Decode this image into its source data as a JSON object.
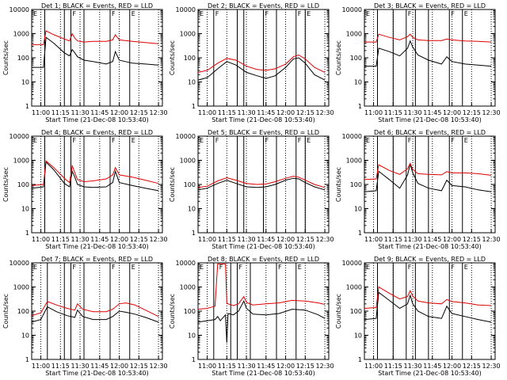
{
  "chart_data": [
    {
      "type": "line",
      "title": "Det 1; BLACK = Events, RED = LLD",
      "xlabel": "Start Time (21-Dec-08 10:53:40)",
      "ylabel": "Counts/sec",
      "yscale": "log",
      "ylim": [
        1,
        10000
      ],
      "xlim": [
        "10:53",
        "12:33"
      ],
      "x_ticks": [
        "11:00",
        "11:15",
        "11:30",
        "11:45",
        "12:00",
        "12:15",
        "12:30"
      ],
      "y_ticks": [
        "1",
        "10",
        "100",
        "1000",
        "10000"
      ],
      "segment_lines": [
        "11:03",
        "11:18",
        "11:23",
        "11:33",
        "11:53",
        "12:08"
      ],
      "markers": [
        {
          "time": "10:53",
          "label": "E"
        },
        {
          "time": "11:23",
          "label": "F"
        },
        {
          "time": "11:53",
          "label": "F"
        },
        {
          "time": "12:08",
          "label": "E"
        }
      ],
      "x": [
        "10:53",
        "11:02",
        "11:04",
        "11:10",
        "11:18",
        "11:22",
        "11:24",
        "11:26",
        "11:28",
        "11:33",
        "11:40",
        "11:50",
        "11:55",
        "11:57",
        "12:00",
        "12:10",
        "12:20",
        "12:30"
      ],
      "series": [
        {
          "name": "BLACK = Events",
          "color": "#000000",
          "values": [
            40,
            40,
            700,
            400,
            160,
            120,
            220,
            160,
            110,
            80,
            70,
            55,
            70,
            180,
            80,
            60,
            55,
            50
          ]
        },
        {
          "name": "RED = LLD",
          "color": "#e00000",
          "values": [
            350,
            350,
            1300,
            900,
            600,
            500,
            1000,
            650,
            500,
            450,
            480,
            480,
            550,
            900,
            550,
            480,
            430,
            380
          ]
        }
      ]
    },
    {
      "type": "line",
      "title": "Det 2; BLACK = Events, RED = LLD",
      "xlabel": "Start Time (21-Dec-08 10:53:40)",
      "ylabel": "Counts/sec",
      "yscale": "log",
      "ylim": [
        1,
        10000
      ],
      "xlim": [
        "10:53",
        "12:33"
      ],
      "x_ticks": [
        "11:00",
        "11:15",
        "11:30",
        "11:45",
        "12:00",
        "12:15",
        "12:30"
      ],
      "y_ticks": [
        "1",
        "10",
        "100",
        "1000",
        "10000"
      ],
      "segment_lines": [
        "11:05",
        "11:23",
        "11:28",
        "11:43",
        "11:53",
        "12:08",
        "12:15"
      ],
      "markers": [
        {
          "time": "10:53",
          "label": "E"
        },
        {
          "time": "11:05",
          "label": "F"
        },
        {
          "time": "11:43",
          "label": "F"
        },
        {
          "time": "12:08",
          "label": "F"
        },
        {
          "time": "12:15",
          "label": "E"
        }
      ],
      "x": [
        "10:53",
        "11:00",
        "11:08",
        "11:15",
        "11:22",
        "11:30",
        "11:38",
        "11:45",
        "11:52",
        "12:00",
        "12:06",
        "12:10",
        "12:15",
        "12:22",
        "12:30"
      ],
      "series": [
        {
          "name": "BLACK = Events",
          "color": "#000000",
          "values": [
            12,
            15,
            35,
            70,
            50,
            25,
            18,
            14,
            18,
            40,
            90,
            100,
            60,
            20,
            12
          ]
        },
        {
          "name": "RED = LLD",
          "color": "#e00000",
          "values": [
            25,
            30,
            60,
            95,
            80,
            45,
            33,
            30,
            35,
            55,
            110,
            130,
            90,
            40,
            25
          ]
        }
      ]
    },
    {
      "type": "line",
      "title": "Det 3; BLACK = Events, RED = LLD",
      "xlabel": "Start Time (21-Dec-08 10:53:40)",
      "ylabel": "Counts/sec",
      "yscale": "log",
      "ylim": [
        1,
        10000
      ],
      "xlim": [
        "10:53",
        "12:33"
      ],
      "x_ticks": [
        "11:00",
        "11:15",
        "11:30",
        "11:45",
        "12:00",
        "12:15",
        "12:30"
      ],
      "y_ticks": [
        "1",
        "10",
        "100",
        "1000",
        "10000"
      ],
      "segment_lines": [
        "11:03",
        "11:15",
        "11:25",
        "11:32",
        "11:42",
        "11:58",
        "12:08"
      ],
      "markers": [
        {
          "time": "10:53",
          "label": "E"
        },
        {
          "time": "11:25",
          "label": "F"
        },
        {
          "time": "11:58",
          "label": "F"
        },
        {
          "time": "12:08",
          "label": "E"
        }
      ],
      "x": [
        "10:53",
        "11:02",
        "11:04",
        "11:12",
        "11:20",
        "11:26",
        "11:28",
        "11:30",
        "11:34",
        "11:42",
        "11:52",
        "11:56",
        "12:00",
        "12:10",
        "12:20",
        "12:30"
      ],
      "series": [
        {
          "name": "BLACK = Events",
          "color": "#000000",
          "values": [
            45,
            45,
            250,
            180,
            120,
            250,
            500,
            280,
            130,
            80,
            55,
            110,
            70,
            55,
            50,
            45
          ]
        },
        {
          "name": "RED = LLD",
          "color": "#e00000",
          "values": [
            450,
            450,
            950,
            700,
            550,
            750,
            950,
            700,
            550,
            520,
            520,
            600,
            550,
            500,
            480,
            450
          ]
        }
      ]
    },
    {
      "type": "line",
      "title": "Det 4; BLACK = Events, RED = LLD",
      "xlabel": "Start Time (21-Dec-08 10:53:40)",
      "ylabel": "Counts/sec",
      "yscale": "log",
      "ylim": [
        1,
        10000
      ],
      "xlim": [
        "10:53",
        "12:33"
      ],
      "x_ticks": [
        "11:00",
        "11:15",
        "11:30",
        "11:45",
        "12:00",
        "12:15",
        "12:30"
      ],
      "y_ticks": [
        "1",
        "10",
        "100",
        "1000",
        "10000"
      ],
      "segment_lines": [
        "11:03",
        "11:18",
        "11:23",
        "11:33",
        "11:53",
        "12:08"
      ],
      "markers": [
        {
          "time": "10:53",
          "label": "E"
        },
        {
          "time": "11:23",
          "label": "F"
        },
        {
          "time": "11:53",
          "label": "F"
        },
        {
          "time": "12:08",
          "label": "E"
        }
      ],
      "x": [
        "10:53",
        "11:02",
        "11:04",
        "11:10",
        "11:18",
        "11:22",
        "11:24",
        "11:26",
        "11:28",
        "11:33",
        "11:40",
        "11:50",
        "11:55",
        "11:57",
        "12:00",
        "12:10",
        "12:20",
        "12:30"
      ],
      "series": [
        {
          "name": "BLACK = Events",
          "color": "#000000",
          "values": [
            70,
            80,
            850,
            400,
            110,
            80,
            350,
            200,
            100,
            80,
            75,
            80,
            120,
            350,
            120,
            90,
            70,
            55
          ]
        },
        {
          "name": "RED = LLD",
          "color": "#e00000",
          "values": [
            90,
            100,
            950,
            500,
            180,
            120,
            600,
            300,
            160,
            130,
            140,
            170,
            250,
            500,
            250,
            200,
            150,
            110
          ]
        }
      ]
    },
    {
      "type": "line",
      "title": "Det 5; BLACK = Events, RED = LLD",
      "xlabel": "Start Time (21-Dec-08 10:53:40)",
      "ylabel": "Counts/sec",
      "yscale": "log",
      "ylim": [
        1,
        10000
      ],
      "xlim": [
        "10:53",
        "12:33"
      ],
      "x_ticks": [
        "11:00",
        "11:15",
        "11:30",
        "11:45",
        "12:00",
        "12:15",
        "12:30"
      ],
      "y_ticks": [
        "1",
        "10",
        "100",
        "1000",
        "10000"
      ],
      "segment_lines": [
        "11:05",
        "11:23",
        "11:28",
        "11:43",
        "11:53",
        "12:08",
        "12:15"
      ],
      "markers": [
        {
          "time": "10:53",
          "label": "E"
        },
        {
          "time": "11:05",
          "label": "F"
        },
        {
          "time": "11:43",
          "label": "F"
        },
        {
          "time": "12:08",
          "label": "F"
        },
        {
          "time": "12:15",
          "label": "E"
        }
      ],
      "x": [
        "10:53",
        "11:00",
        "11:08",
        "11:15",
        "11:22",
        "11:30",
        "11:38",
        "11:45",
        "11:52",
        "12:00",
        "12:06",
        "12:10",
        "12:15",
        "12:22",
        "12:30"
      ],
      "series": [
        {
          "name": "BLACK = Events",
          "color": "#000000",
          "values": [
            60,
            70,
            110,
            150,
            110,
            80,
            75,
            80,
            100,
            150,
            180,
            170,
            120,
            80,
            60
          ]
        },
        {
          "name": "RED = LLD",
          "color": "#e00000",
          "values": [
            75,
            85,
            140,
            190,
            150,
            110,
            100,
            105,
            130,
            180,
            220,
            200,
            150,
            100,
            75
          ]
        }
      ]
    },
    {
      "type": "line",
      "title": "Det 6; BLACK = Events, RED = LLD",
      "xlabel": "Start Time (21-Dec-08 10:53:40)",
      "ylabel": "Counts/sec",
      "yscale": "log",
      "ylim": [
        1,
        10000
      ],
      "xlim": [
        "10:53",
        "12:33"
      ],
      "x_ticks": [
        "11:00",
        "11:15",
        "11:30",
        "11:45",
        "12:00",
        "12:15",
        "12:30"
      ],
      "y_ticks": [
        "1",
        "10",
        "100",
        "1000",
        "10000"
      ],
      "segment_lines": [
        "11:03",
        "11:15",
        "11:25",
        "11:32",
        "11:42",
        "11:58",
        "12:08"
      ],
      "markers": [
        {
          "time": "10:53",
          "label": "E"
        },
        {
          "time": "11:25",
          "label": "F"
        },
        {
          "time": "11:58",
          "label": "F"
        },
        {
          "time": "12:08",
          "label": "E"
        }
      ],
      "x": [
        "10:53",
        "11:02",
        "11:04",
        "11:12",
        "11:20",
        "11:26",
        "11:28",
        "11:30",
        "11:34",
        "11:42",
        "11:52",
        "11:56",
        "12:00",
        "12:10",
        "12:20",
        "12:30"
      ],
      "series": [
        {
          "name": "BLACK = Events",
          "color": "#000000",
          "values": [
            50,
            55,
            350,
            160,
            70,
            250,
            700,
            300,
            110,
            70,
            55,
            150,
            90,
            80,
            60,
            50
          ]
        },
        {
          "name": "RED = LLD",
          "color": "#e00000",
          "values": [
            160,
            170,
            650,
            380,
            260,
            450,
            750,
            420,
            280,
            260,
            250,
            340,
            300,
            300,
            280,
            240
          ]
        }
      ]
    },
    {
      "type": "line",
      "title": "Det 7; BLACK = Events, RED = LLD",
      "xlabel": "Start Time (21-Dec-08 10:53:40)",
      "ylabel": "Counts/sec",
      "yscale": "log",
      "ylim": [
        1,
        10000
      ],
      "xlim": [
        "10:53",
        "12:33"
      ],
      "x_ticks": [
        "11:00",
        "11:15",
        "11:30",
        "11:45",
        "12:00",
        "12:15",
        "12:30"
      ],
      "y_ticks": [
        "1",
        "10",
        "100",
        "1000",
        "10000"
      ],
      "segment_lines": [
        "11:05",
        "11:18",
        "11:23",
        "11:33",
        "11:53",
        "12:08"
      ],
      "markers": [
        {
          "time": "10:53",
          "label": "E"
        },
        {
          "time": "11:23",
          "label": "F"
        },
        {
          "time": "11:53",
          "label": "F"
        },
        {
          "time": "12:08",
          "label": "E"
        }
      ],
      "x": [
        "10:53",
        "11:00",
        "11:05",
        "11:12",
        "11:20",
        "11:26",
        "11:28",
        "11:32",
        "11:40",
        "11:50",
        "11:55",
        "12:00",
        "12:05",
        "12:12",
        "12:20",
        "12:30"
      ],
      "series": [
        {
          "name": "BLACK = Events",
          "color": "#000000",
          "values": [
            35,
            45,
            150,
            95,
            65,
            55,
            110,
            60,
            45,
            45,
            60,
            100,
            90,
            75,
            55,
            35
          ]
        },
        {
          "name": "RED = LLD",
          "color": "#e00000",
          "values": [
            65,
            85,
            250,
            180,
            130,
            110,
            200,
            120,
            95,
            95,
            120,
            200,
            220,
            180,
            110,
            60
          ]
        }
      ]
    },
    {
      "type": "line",
      "title": "Det 8; BLACK = Events, RED = LLD",
      "xlabel": "Start Time (21-Dec-08 10:53:40)",
      "ylabel": "Counts/sec",
      "yscale": "log",
      "ylim": [
        1,
        10000
      ],
      "xlim": [
        "10:53",
        "12:33"
      ],
      "x_ticks": [
        "11:00",
        "11:15",
        "11:30",
        "11:45",
        "12:00",
        "12:15",
        "12:30"
      ],
      "y_ticks": [
        "1",
        "10",
        "100",
        "1000",
        "10000"
      ],
      "segment_lines": [
        "11:05",
        "11:18",
        "11:23",
        "11:33",
        "11:53",
        "12:08"
      ],
      "markers": [
        {
          "time": "10:53",
          "label": "E"
        },
        {
          "time": "11:08",
          "label": "F"
        },
        {
          "time": "11:23",
          "label": "F"
        },
        {
          "time": "11:53",
          "label": "F"
        },
        {
          "time": "12:08",
          "label": "E"
        }
      ],
      "x": [
        "10:53",
        "11:00",
        "11:06",
        "11:08",
        "11:10",
        "11:14",
        "11:15",
        "11:16",
        "11:20",
        "11:24",
        "11:28",
        "11:30",
        "11:35",
        "11:45",
        "11:55",
        "12:05",
        "12:15",
        "12:25",
        "12:30"
      ],
      "series": [
        {
          "name": "BLACK = Events",
          "color": "#000000",
          "values": [
            35,
            40,
            45,
            60,
            40,
            70,
            5,
            80,
            70,
            100,
            260,
            130,
            75,
            70,
            80,
            120,
            110,
            70,
            50
          ]
        },
        {
          "name": "RED = LLD",
          "color": "#e00000",
          "values": [
            120,
            130,
            160,
            9000,
            9000,
            9000,
            220,
            200,
            170,
            200,
            400,
            230,
            180,
            200,
            220,
            280,
            260,
            220,
            190
          ]
        }
      ]
    },
    {
      "type": "line",
      "title": "Det 9; BLACK = Events, RED = LLD",
      "xlabel": "Start Time (21-Dec-08 10:53:40)",
      "ylabel": "Counts/sec",
      "yscale": "log",
      "ylim": [
        1,
        10000
      ],
      "xlim": [
        "10:53",
        "12:33"
      ],
      "x_ticks": [
        "11:00",
        "11:15",
        "11:30",
        "11:45",
        "12:00",
        "12:15",
        "12:30"
      ],
      "y_ticks": [
        "1",
        "10",
        "100",
        "1000",
        "10000"
      ],
      "segment_lines": [
        "11:03",
        "11:15",
        "11:25",
        "11:32",
        "11:42",
        "11:58",
        "12:08"
      ],
      "markers": [
        {
          "time": "10:53",
          "label": "E"
        },
        {
          "time": "11:25",
          "label": "F"
        },
        {
          "time": "11:58",
          "label": "F"
        },
        {
          "time": "12:08",
          "label": "E"
        }
      ],
      "x": [
        "10:53",
        "11:02",
        "11:04",
        "11:12",
        "11:20",
        "11:26",
        "11:28",
        "11:30",
        "11:34",
        "11:42",
        "11:52",
        "11:56",
        "12:00",
        "12:10",
        "12:20",
        "12:30"
      ],
      "series": [
        {
          "name": "BLACK = Events",
          "color": "#000000",
          "values": [
            45,
            50,
            600,
            280,
            130,
            200,
            450,
            200,
            100,
            60,
            50,
            160,
            80,
            60,
            45,
            35
          ]
        },
        {
          "name": "RED = LLD",
          "color": "#e00000",
          "values": [
            130,
            140,
            1000,
            550,
            320,
            400,
            700,
            420,
            260,
            220,
            200,
            300,
            250,
            220,
            180,
            170
          ]
        }
      ]
    }
  ]
}
